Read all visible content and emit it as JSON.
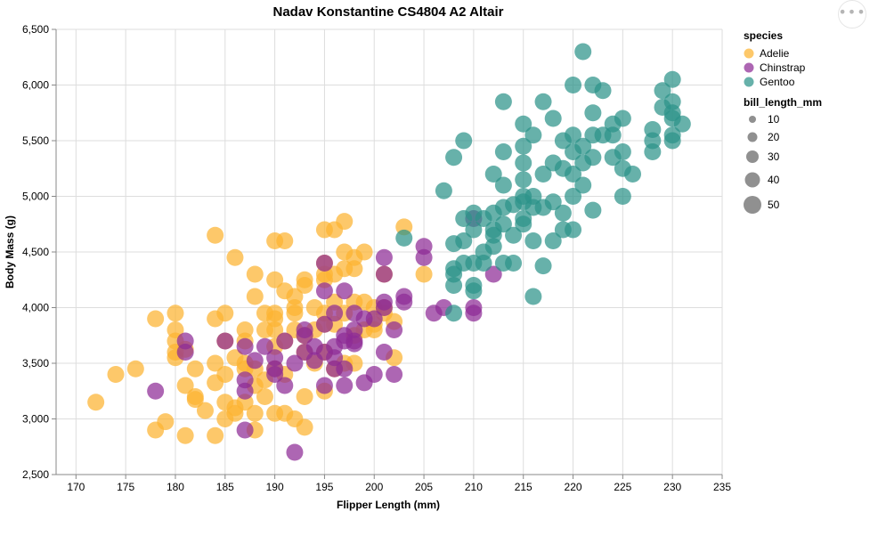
{
  "colors": {
    "Adelie": "#fcb330",
    "Chinstrap": "#8e2b96",
    "Gentoo": "#2d9389",
    "grid": "#dddddd",
    "axis": "#888888"
  },
  "menu": {
    "icon": "ellipsis-icon",
    "glyph": "•••"
  },
  "chart_data": {
    "type": "scatter",
    "title": "Nadav Konstantine CS4804 A2 Altair",
    "xlabel": "Flipper Length (mm)",
    "ylabel": "Body Mass (g)",
    "xlim": [
      168,
      235
    ],
    "ylim": [
      2500,
      6500
    ],
    "xticks": [
      170,
      175,
      180,
      185,
      190,
      195,
      200,
      205,
      210,
      215,
      220,
      225,
      230,
      235
    ],
    "xtick_labels": [
      "170",
      "175",
      "180",
      "185",
      "190",
      "195",
      "200",
      "205",
      "210",
      "215",
      "220",
      "225",
      "230",
      "235"
    ],
    "yticks": [
      2500,
      3000,
      3500,
      4000,
      4500,
      5000,
      5500,
      6000,
      6500
    ],
    "ytick_labels": [
      "2,500",
      "3,000",
      "3,500",
      "4,000",
      "4,500",
      "5,000",
      "5,500",
      "6,000",
      "6,500"
    ],
    "grid": true,
    "legend": {
      "placement": "right",
      "color_title": "species",
      "color_entries": [
        "Adelie",
        "Chinstrap",
        "Gentoo"
      ],
      "size_title": "bill_length_mm",
      "size_entries": [
        10,
        20,
        30,
        40,
        50
      ],
      "size_labels": [
        "10",
        "20",
        "30",
        "40",
        "50"
      ]
    },
    "series": [
      {
        "name": "Adelie",
        "points": [
          [
            172,
            3150
          ],
          [
            174,
            3400
          ],
          [
            176,
            3450
          ],
          [
            178,
            3900
          ],
          [
            178,
            2900
          ],
          [
            179,
            2975
          ],
          [
            180,
            3550
          ],
          [
            180,
            3950
          ],
          [
            180,
            3800
          ],
          [
            180,
            3600
          ],
          [
            180,
            3700
          ],
          [
            181,
            2850
          ],
          [
            181,
            3300
          ],
          [
            181,
            3625
          ],
          [
            182,
            3450
          ],
          [
            182,
            3175
          ],
          [
            182,
            3200
          ],
          [
            183,
            3075
          ],
          [
            184,
            3900
          ],
          [
            184,
            3325
          ],
          [
            184,
            2850
          ],
          [
            184,
            3500
          ],
          [
            184,
            4650
          ],
          [
            185,
            3700
          ],
          [
            185,
            3950
          ],
          [
            185,
            3400
          ],
          [
            185,
            3000
          ],
          [
            185,
            3150
          ],
          [
            186,
            3550
          ],
          [
            186,
            4450
          ],
          [
            186,
            3100
          ],
          [
            186,
            3050
          ],
          [
            187,
            3800
          ],
          [
            187,
            3450
          ],
          [
            187,
            3500
          ],
          [
            187,
            3150
          ],
          [
            187,
            3700
          ],
          [
            188,
            3050
          ],
          [
            188,
            3300
          ],
          [
            188,
            4100
          ],
          [
            188,
            4300
          ],
          [
            188,
            2900
          ],
          [
            188,
            3450
          ],
          [
            189,
            3950
          ],
          [
            189,
            3200
          ],
          [
            189,
            3350
          ],
          [
            189,
            3800
          ],
          [
            190,
            4600
          ],
          [
            190,
            4250
          ],
          [
            190,
            3950
          ],
          [
            190,
            3900
          ],
          [
            190,
            3450
          ],
          [
            190,
            3050
          ],
          [
            190,
            3650
          ],
          [
            190,
            3800
          ],
          [
            191,
            4600
          ],
          [
            191,
            4150
          ],
          [
            191,
            3700
          ],
          [
            191,
            3400
          ],
          [
            191,
            3050
          ],
          [
            192,
            4100
          ],
          [
            192,
            4000
          ],
          [
            192,
            3950
          ],
          [
            192,
            3000
          ],
          [
            192,
            3800
          ],
          [
            193,
            4200
          ],
          [
            193,
            4250
          ],
          [
            193,
            3200
          ],
          [
            193,
            2925
          ],
          [
            193,
            3600
          ],
          [
            193,
            3750
          ],
          [
            194,
            4000
          ],
          [
            194,
            3800
          ],
          [
            194,
            3500
          ],
          [
            195,
            4700
          ],
          [
            195,
            4300
          ],
          [
            195,
            4250
          ],
          [
            195,
            3950
          ],
          [
            195,
            3850
          ],
          [
            195,
            3600
          ],
          [
            195,
            3250
          ],
          [
            195,
            4400
          ],
          [
            196,
            4700
          ],
          [
            196,
            4300
          ],
          [
            196,
            4050
          ],
          [
            196,
            3450
          ],
          [
            196,
            3850
          ],
          [
            197,
            4775
          ],
          [
            197,
            4500
          ],
          [
            197,
            4350
          ],
          [
            197,
            3950
          ],
          [
            197,
            3500
          ],
          [
            198,
            4450
          ],
          [
            198,
            4350
          ],
          [
            198,
            4050
          ],
          [
            198,
            3500
          ],
          [
            198,
            3750
          ],
          [
            199,
            4500
          ],
          [
            199,
            4050
          ],
          [
            199,
            3800
          ],
          [
            200,
            4000
          ],
          [
            200,
            3850
          ],
          [
            200,
            3800
          ],
          [
            201,
            4000
          ],
          [
            201,
            3950
          ],
          [
            201,
            4300
          ],
          [
            202,
            3875
          ],
          [
            202,
            3550
          ],
          [
            203,
            4725
          ],
          [
            205,
            4300
          ]
        ]
      },
      {
        "name": "Chinstrap",
        "points": [
          [
            178,
            3250
          ],
          [
            181,
            3700
          ],
          [
            181,
            3600
          ],
          [
            185,
            3700
          ],
          [
            187,
            3250
          ],
          [
            187,
            3350
          ],
          [
            187,
            2900
          ],
          [
            187,
            3650
          ],
          [
            188,
            3525
          ],
          [
            189,
            3650
          ],
          [
            190,
            3550
          ],
          [
            190,
            3450
          ],
          [
            190,
            3400
          ],
          [
            191,
            3700
          ],
          [
            191,
            3300
          ],
          [
            192,
            2700
          ],
          [
            192,
            3500
          ],
          [
            193,
            3600
          ],
          [
            193,
            3800
          ],
          [
            193,
            3750
          ],
          [
            194,
            3525
          ],
          [
            194,
            3650
          ],
          [
            195,
            3600
          ],
          [
            195,
            3300
          ],
          [
            195,
            4150
          ],
          [
            195,
            4400
          ],
          [
            195,
            3850
          ],
          [
            196,
            3550
          ],
          [
            196,
            3650
          ],
          [
            196,
            3450
          ],
          [
            196,
            3950
          ],
          [
            197,
            4150
          ],
          [
            197,
            3700
          ],
          [
            197,
            3300
          ],
          [
            197,
            3750
          ],
          [
            197,
            3450
          ],
          [
            198,
            3950
          ],
          [
            198,
            3675
          ],
          [
            198,
            3800
          ],
          [
            198,
            3700
          ],
          [
            199,
            3325
          ],
          [
            199,
            3900
          ],
          [
            200,
            3400
          ],
          [
            200,
            3900
          ],
          [
            201,
            4300
          ],
          [
            201,
            4450
          ],
          [
            201,
            4050
          ],
          [
            201,
            3600
          ],
          [
            201,
            4000
          ],
          [
            202,
            3400
          ],
          [
            202,
            3800
          ],
          [
            203,
            4100
          ],
          [
            203,
            4050
          ],
          [
            205,
            4550
          ],
          [
            205,
            4450
          ],
          [
            206,
            3950
          ],
          [
            207,
            4000
          ],
          [
            210,
            4800
          ],
          [
            210,
            3950
          ],
          [
            210,
            4000
          ],
          [
            212,
            4300
          ]
        ]
      },
      {
        "name": "Gentoo",
        "points": [
          [
            203,
            4625
          ],
          [
            207,
            5050
          ],
          [
            208,
            4575
          ],
          [
            208,
            4200
          ],
          [
            208,
            4300
          ],
          [
            208,
            4350
          ],
          [
            208,
            3950
          ],
          [
            208,
            5350
          ],
          [
            209,
            5500
          ],
          [
            209,
            4800
          ],
          [
            209,
            4600
          ],
          [
            209,
            4400
          ],
          [
            210,
            4700
          ],
          [
            210,
            4850
          ],
          [
            210,
            4400
          ],
          [
            210,
            4200
          ],
          [
            210,
            4150
          ],
          [
            211,
            4800
          ],
          [
            211,
            4500
          ],
          [
            211,
            4400
          ],
          [
            212,
            5200
          ],
          [
            212,
            4850
          ],
          [
            212,
            4700
          ],
          [
            212,
            4650
          ],
          [
            212,
            4550
          ],
          [
            213,
            5850
          ],
          [
            213,
            5400
          ],
          [
            213,
            5100
          ],
          [
            213,
            4900
          ],
          [
            213,
            4750
          ],
          [
            213,
            4400
          ],
          [
            214,
            4925
          ],
          [
            214,
            4650
          ],
          [
            214,
            4400
          ],
          [
            215,
            5650
          ],
          [
            215,
            5450
          ],
          [
            215,
            5300
          ],
          [
            215,
            5150
          ],
          [
            215,
            5000
          ],
          [
            215,
            4950
          ],
          [
            215,
            4800
          ],
          [
            215,
            4750
          ],
          [
            216,
            5550
          ],
          [
            216,
            5000
          ],
          [
            216,
            4900
          ],
          [
            216,
            4600
          ],
          [
            216,
            4100
          ],
          [
            217,
            5850
          ],
          [
            217,
            5200
          ],
          [
            217,
            4900
          ],
          [
            217,
            4375
          ],
          [
            218,
            5700
          ],
          [
            218,
            5300
          ],
          [
            218,
            4950
          ],
          [
            218,
            4600
          ],
          [
            219,
            5500
          ],
          [
            219,
            5250
          ],
          [
            219,
            4850
          ],
          [
            219,
            4700
          ],
          [
            220,
            6000
          ],
          [
            220,
            5550
          ],
          [
            220,
            5400
          ],
          [
            220,
            5200
          ],
          [
            220,
            4700
          ],
          [
            220,
            5000
          ],
          [
            221,
            6300
          ],
          [
            221,
            5450
          ],
          [
            221,
            5300
          ],
          [
            221,
            5100
          ],
          [
            222,
            6000
          ],
          [
            222,
            5750
          ],
          [
            222,
            5550
          ],
          [
            222,
            5350
          ],
          [
            222,
            4875
          ],
          [
            223,
            5950
          ],
          [
            223,
            5550
          ],
          [
            224,
            5650
          ],
          [
            224,
            5350
          ],
          [
            224,
            5550
          ],
          [
            225,
            5700
          ],
          [
            225,
            5400
          ],
          [
            225,
            5250
          ],
          [
            225,
            5000
          ],
          [
            226,
            5200
          ],
          [
            228,
            5600
          ],
          [
            228,
            5500
          ],
          [
            228,
            5400
          ],
          [
            229,
            5950
          ],
          [
            229,
            5800
          ],
          [
            230,
            6050
          ],
          [
            230,
            5850
          ],
          [
            230,
            5700
          ],
          [
            230,
            5550
          ],
          [
            230,
            5500
          ],
          [
            230,
            5750
          ],
          [
            231,
            5650
          ]
        ]
      }
    ]
  }
}
